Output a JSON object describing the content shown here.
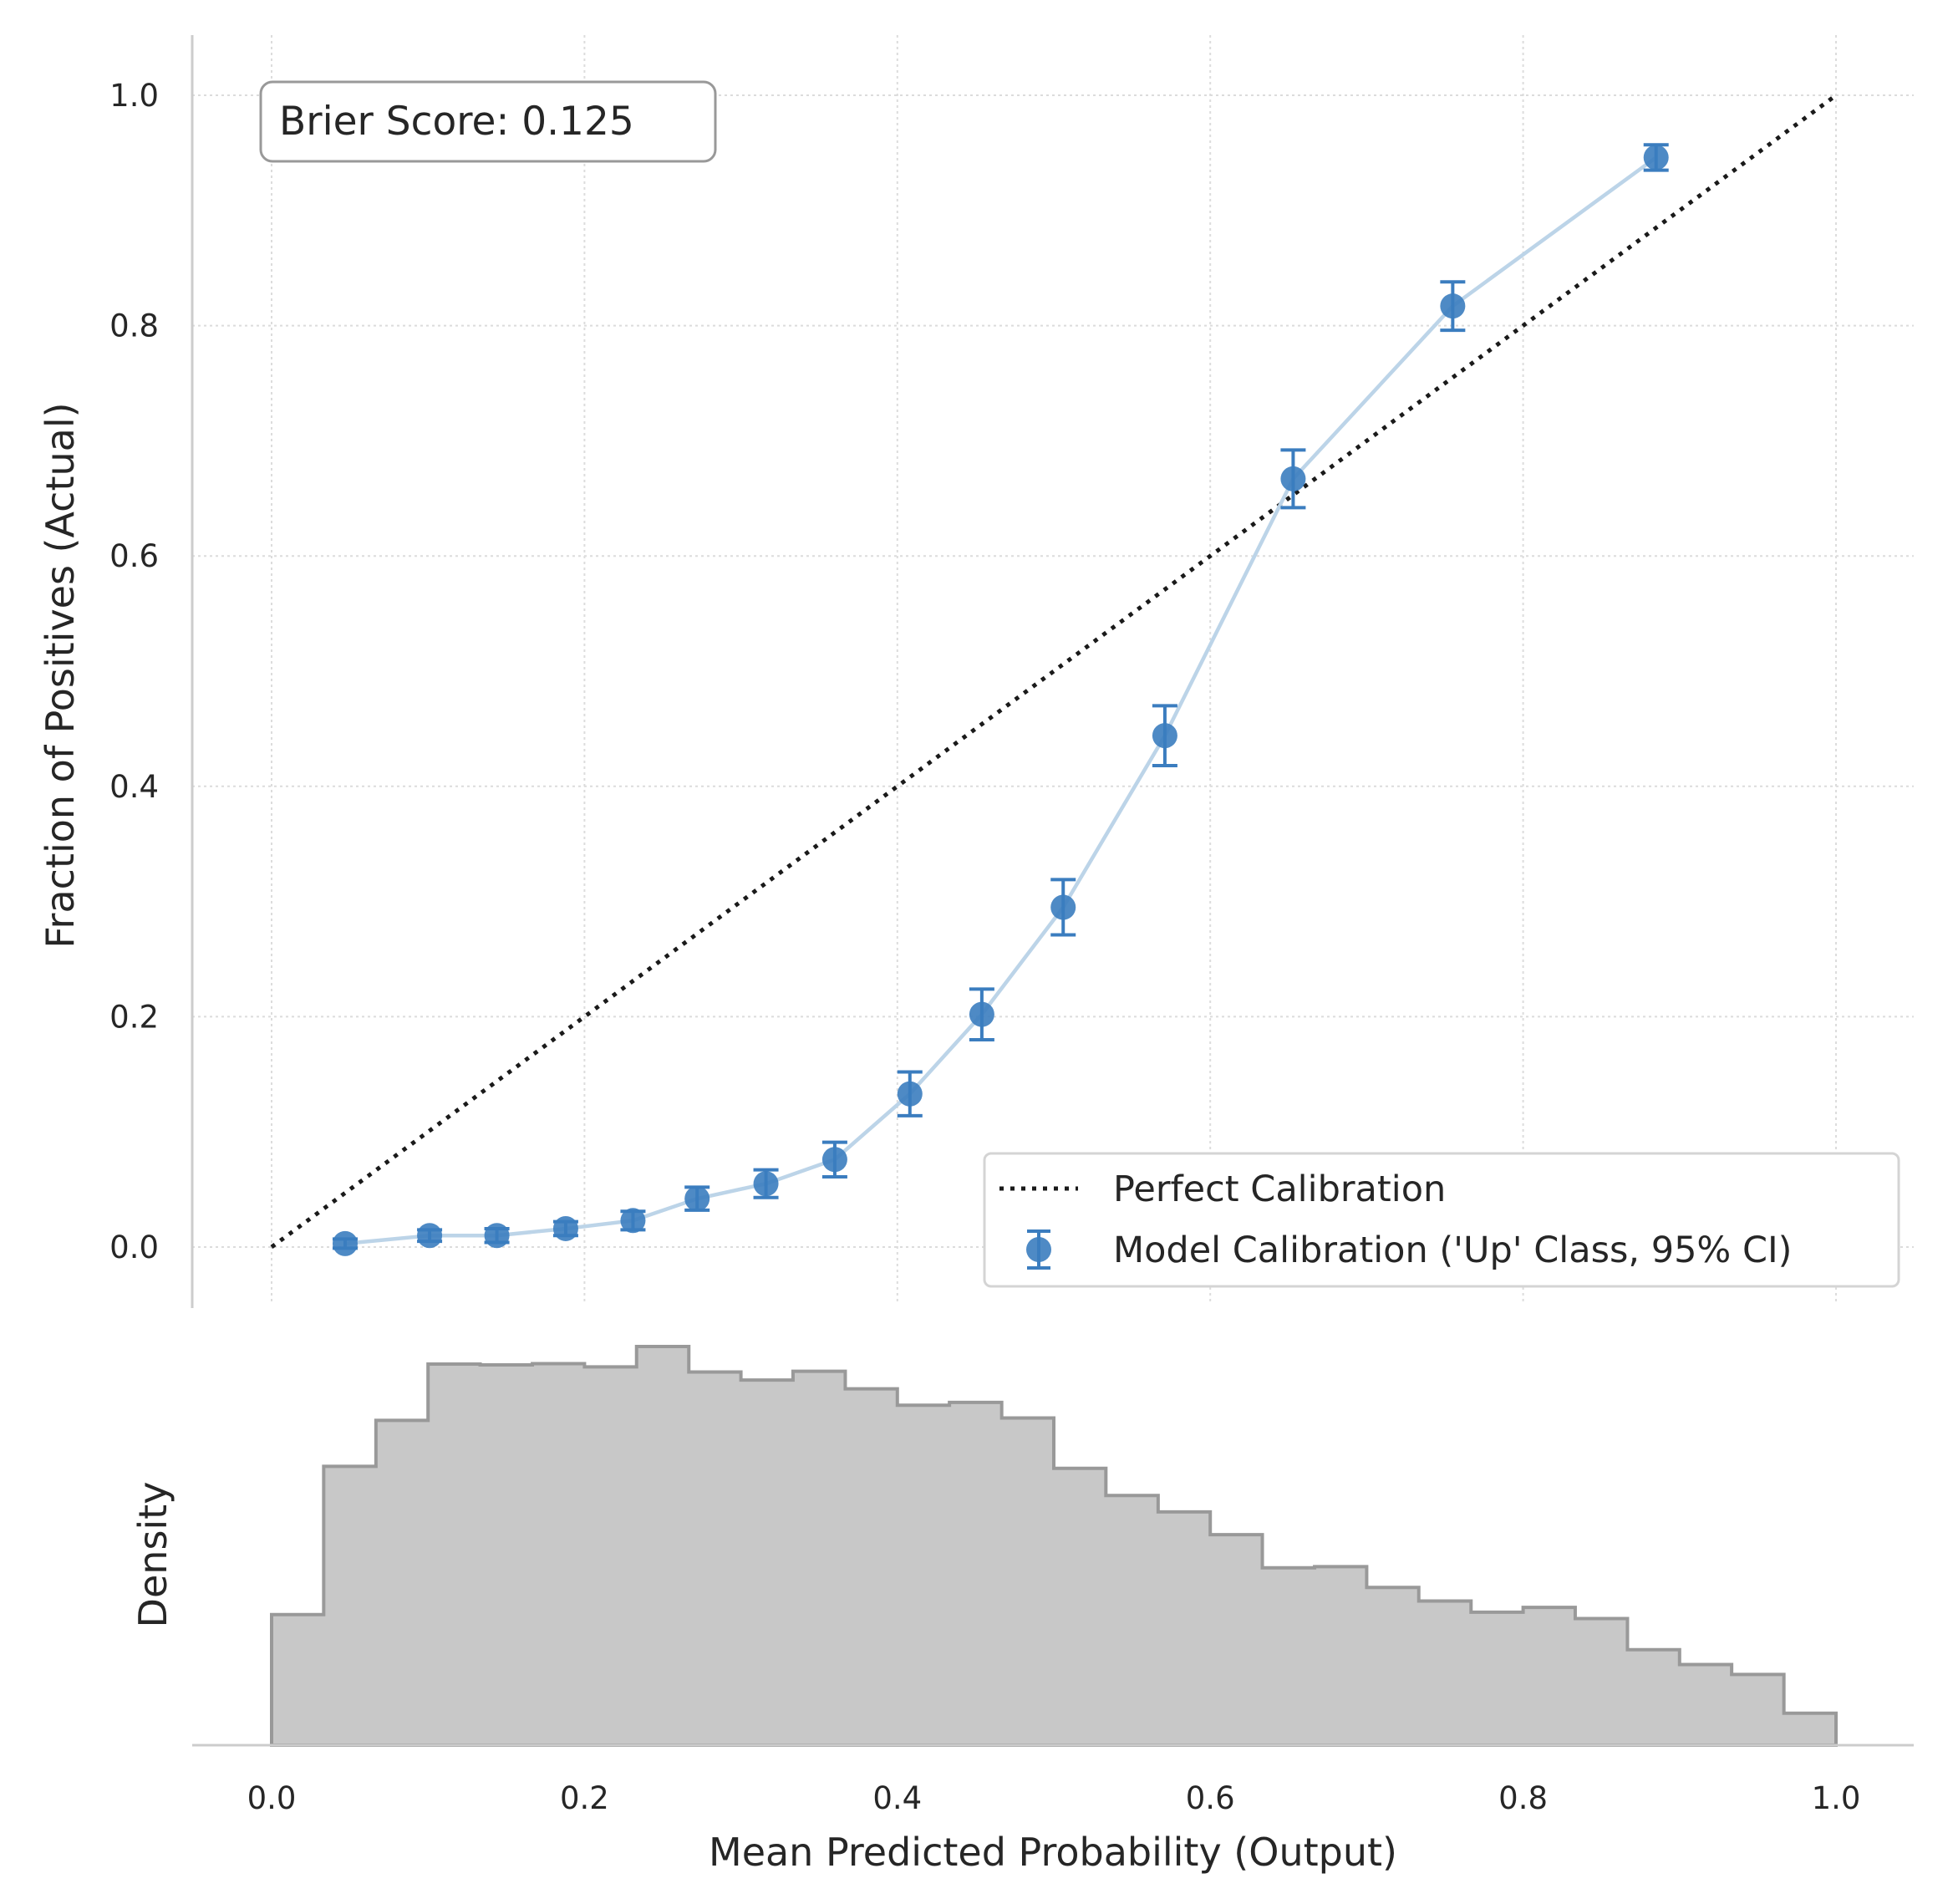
{
  "chart_data": [
    {
      "type": "line",
      "panel": "calibration",
      "xlabel": "",
      "ylabel": "Fraction of Positives (Actual)",
      "xlim": [
        -0.05,
        1.05
      ],
      "ylim": [
        -0.05,
        1.05
      ],
      "yticks": [
        0.0,
        0.2,
        0.4,
        0.6,
        0.8,
        1.0
      ],
      "ytick_labels": [
        "0.0",
        "0.2",
        "0.4",
        "0.6",
        "0.8",
        "1.0"
      ],
      "grid": true,
      "annotation": "Brier Score: 0.125",
      "legend_position": "lower right",
      "series": [
        {
          "name": "Perfect Calibration",
          "style": "dotted",
          "color": "#1a1a1a",
          "x": [
            0.0,
            1.0
          ],
          "y": [
            0.0,
            1.0
          ]
        },
        {
          "name": "Model Calibration ('Up' Class, 95% CI)",
          "style": "errorbar",
          "color": "#3b7dbf",
          "line_color": "#bcd4e8",
          "x": [
            0.047,
            0.101,
            0.144,
            0.188,
            0.231,
            0.272,
            0.316,
            0.36,
            0.408,
            0.454,
            0.506,
            0.571,
            0.653,
            0.755,
            0.885
          ],
          "y": [
            0.003,
            0.01,
            0.01,
            0.016,
            0.023,
            0.042,
            0.055,
            0.076,
            0.133,
            0.202,
            0.295,
            0.444,
            0.667,
            0.817,
            0.946
          ],
          "yerr": [
            0.004,
            0.005,
            0.006,
            0.006,
            0.008,
            0.01,
            0.012,
            0.015,
            0.019,
            0.022,
            0.024,
            0.026,
            0.025,
            0.021,
            0.011
          ]
        }
      ]
    },
    {
      "type": "histogram",
      "panel": "distribution",
      "xlabel": "Mean Predicted Probability (Output)",
      "ylabel": "Density",
      "xlim": [
        -0.05,
        1.05
      ],
      "xticks": [
        0.0,
        0.2,
        0.4,
        0.6,
        0.8,
        1.0
      ],
      "xtick_labels": [
        "0.0",
        "0.2",
        "0.4",
        "0.6",
        "0.8",
        "1.0"
      ],
      "fill_color": "#c8c8c8",
      "edge_color": "#999999",
      "bin_edges": [
        0.0,
        0.0333,
        0.0667,
        0.1,
        0.1333,
        0.1667,
        0.2,
        0.2333,
        0.2667,
        0.3,
        0.3333,
        0.3667,
        0.4,
        0.4333,
        0.4667,
        0.5,
        0.5333,
        0.5667,
        0.6,
        0.6333,
        0.6667,
        0.7,
        0.7333,
        0.7667,
        0.8,
        0.8333,
        0.8667,
        0.9,
        0.9333,
        0.9667,
        1.0
      ],
      "heights": [
        0.327,
        0.698,
        0.813,
        0.954,
        0.952,
        0.955,
        0.947,
        0.998,
        0.934,
        0.914,
        0.936,
        0.892,
        0.851,
        0.858,
        0.819,
        0.693,
        0.625,
        0.584,
        0.527,
        0.444,
        0.447,
        0.395,
        0.361,
        0.333,
        0.345,
        0.317,
        0.239,
        0.202,
        0.177,
        0.08
      ]
    }
  ]
}
